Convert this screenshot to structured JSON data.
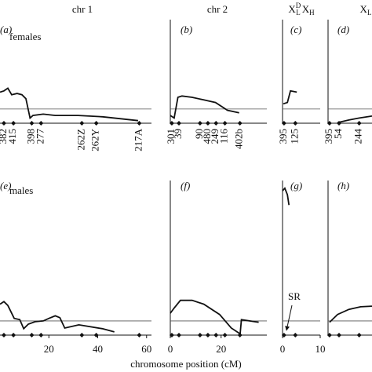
{
  "chart_data": [
    {
      "type": "line",
      "panel": "(a)",
      "title": [
        "chr 1"
      ],
      "annotation": "females",
      "xlim": [
        0,
        62
      ],
      "ylim": [
        0,
        8
      ],
      "threshold": 1.1,
      "x": [
        0,
        1.6,
        3.2,
        4.8,
        7,
        9,
        10.6,
        12.3,
        13.5,
        17.7,
        22.6,
        32,
        42,
        56.5
      ],
      "values": [
        2.4,
        2.5,
        2.7,
        2.2,
        2.3,
        2.2,
        1.9,
        0.4,
        0.6,
        0.7,
        0.6,
        0.6,
        0.5,
        0.2
      ],
      "markers": {
        "names": [
          "382",
          "415",
          "398",
          "277",
          "262Z",
          "262Y",
          "217A"
        ],
        "positions": [
          1.6,
          5.5,
          13,
          16.8,
          33.5,
          39.4,
          57
        ]
      }
    },
    {
      "type": "line",
      "panel": "(b)",
      "title": [
        "chr 2"
      ],
      "xlim": [
        0,
        38
      ],
      "ylim": [
        0,
        8
      ],
      "threshold": 1.1,
      "x": [
        0,
        1.5,
        3,
        4.6,
        8.6,
        13.2,
        17.8,
        22.5,
        27.1
      ],
      "values": [
        0.6,
        0.4,
        2.0,
        2.1,
        2.0,
        1.8,
        1.6,
        1.0,
        0.8
      ],
      "markers": {
        "names": [
          "301",
          "39",
          "90",
          "480",
          "249",
          "116",
          "402b"
        ],
        "positions": [
          0.6,
          3.4,
          11.7,
          14.8,
          18,
          21.5,
          27.4
        ]
      }
    },
    {
      "type": "line",
      "panel": "(c)",
      "title": [
        "X",
        "D",
        "L",
        "X",
        "H"
      ],
      "xlim": [
        0,
        10
      ],
      "ylim": [
        0,
        8
      ],
      "threshold": 1.1,
      "x": [
        0.2,
        1.3,
        2.1,
        3.8
      ],
      "values": [
        1.5,
        1.6,
        2.5,
        2.4
      ],
      "markers": {
        "names": [
          "395",
          "125"
        ],
        "positions": [
          0.4,
          3.4
        ]
      }
    },
    {
      "type": "line",
      "panel": "(d)",
      "title": [
        "X",
        "L"
      ],
      "xlim": [
        0,
        12
      ],
      "ylim": [
        0,
        8
      ],
      "threshold": 1.1,
      "x": [
        2.6,
        5.7,
        8.5,
        12
      ],
      "values": [
        0.05,
        0.25,
        0.4,
        0.55
      ],
      "markers": {
        "names": [
          "395",
          "54",
          "244"
        ],
        "positions": [
          0.4,
          3,
          8.5
        ]
      }
    },
    {
      "type": "line",
      "panel": "(e)",
      "annotation": "males",
      "xlim": [
        0,
        62
      ],
      "ylim": [
        0,
        12
      ],
      "threshold": 1.1,
      "xticks": [
        20,
        40,
        60
      ],
      "x": [
        0,
        1.6,
        3.2,
        5.8,
        8.1,
        9.7,
        11.6,
        14.5,
        17.7,
        20,
        22.6,
        24.5,
        26.5,
        32.3,
        41.9,
        46.8
      ],
      "values": [
        2.4,
        2.6,
        2.3,
        1.3,
        1.2,
        0.5,
        0.85,
        1.05,
        1.1,
        1.3,
        1.5,
        1.35,
        0.55,
        0.8,
        0.5,
        0.25
      ],
      "markers": {
        "positions": [
          1.6,
          5.5,
          13,
          16.8,
          33.5,
          39.4,
          57
        ]
      }
    },
    {
      "type": "line",
      "panel": "(f)",
      "xlabel": "chromosome position (cM)",
      "xlim": [
        0,
        38
      ],
      "ylim": [
        0,
        12
      ],
      "threshold": 1.1,
      "xticks": [
        0,
        20
      ],
      "x": [
        0,
        1.5,
        4,
        8.6,
        13.2,
        19.4,
        24,
        27.5,
        28,
        34.8
      ],
      "values": [
        1.7,
        2.1,
        2.7,
        2.7,
        2.4,
        1.6,
        0.55,
        0.1,
        1.2,
        1.0
      ],
      "markers": {
        "positions": [
          0.6,
          3.4,
          11.7,
          14.8,
          18,
          21.5,
          27.4
        ]
      }
    },
    {
      "type": "line",
      "panel": "(g)",
      "annotation": "SR",
      "xlim": [
        0,
        10
      ],
      "ylim": [
        0,
        12
      ],
      "threshold": 1.1,
      "xticks": [
        0,
        10
      ],
      "x": [
        0,
        0.6,
        1.3,
        1.7
      ],
      "values": [
        11.2,
        11.4,
        10.9,
        10.1
      ],
      "markers": {
        "positions": [
          0.4,
          3.4
        ]
      }
    },
    {
      "type": "line",
      "panel": "(h)",
      "xlim": [
        0,
        12
      ],
      "ylim": [
        0,
        12
      ],
      "threshold": 1.1,
      "x": [
        0.4,
        2.6,
        5.7,
        8.9,
        12
      ],
      "values": [
        1.0,
        1.6,
        2.0,
        2.2,
        2.25
      ],
      "markers": {
        "positions": [
          0.4,
          3,
          8.5
        ]
      }
    }
  ]
}
